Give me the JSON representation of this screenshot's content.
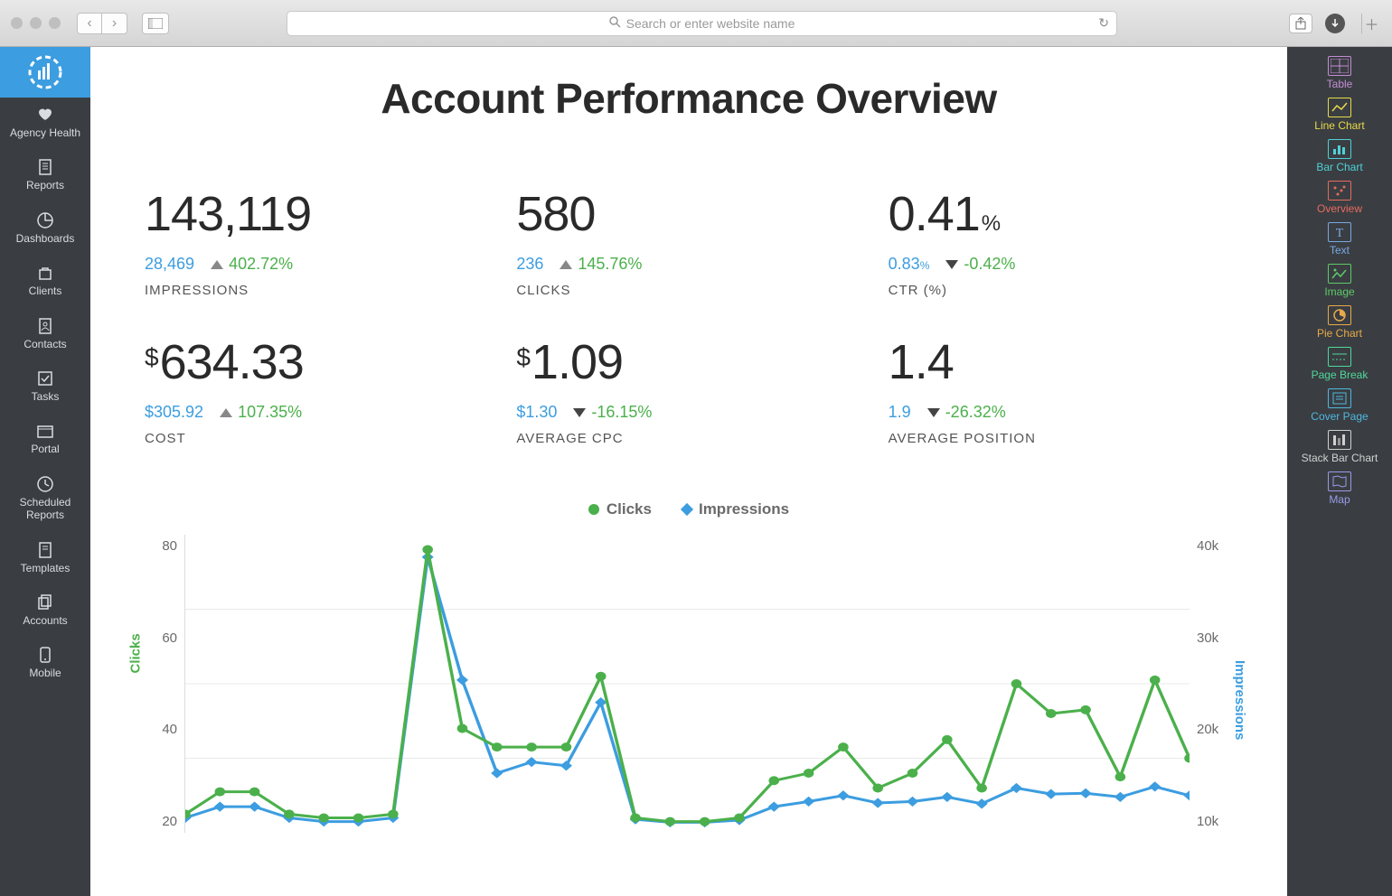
{
  "browser": {
    "placeholder": "Search or enter website name"
  },
  "left_rail": {
    "items": [
      {
        "label": "Agency Health"
      },
      {
        "label": "Reports"
      },
      {
        "label": "Dashboards"
      },
      {
        "label": "Clients"
      },
      {
        "label": "Contacts"
      },
      {
        "label": "Tasks"
      },
      {
        "label": "Portal"
      },
      {
        "label": "Scheduled Reports"
      },
      {
        "label": "Templates"
      },
      {
        "label": "Accounts"
      },
      {
        "label": "Mobile"
      }
    ]
  },
  "title": "Account Performance Overview",
  "kpis": [
    {
      "value": "143,119",
      "prefix": "",
      "unit": "",
      "prev": "28,469",
      "prev_unit": "",
      "delta": "402.72%",
      "dir": "up",
      "label": "IMPRESSIONS"
    },
    {
      "value": "580",
      "prefix": "",
      "unit": "",
      "prev": "236",
      "prev_unit": "",
      "delta": "145.76%",
      "dir": "up",
      "label": "CLICKS"
    },
    {
      "value": "0.41",
      "prefix": "",
      "unit": "%",
      "prev": "0.83",
      "prev_unit": "%",
      "delta": "-0.42%",
      "dir": "down",
      "label": "CTR (%)"
    },
    {
      "value": "634.33",
      "prefix": "$",
      "unit": "",
      "prev": "$305.92",
      "prev_unit": "",
      "delta": "107.35%",
      "dir": "up",
      "label": "COST"
    },
    {
      "value": "1.09",
      "prefix": "$",
      "unit": "",
      "prev": "$1.30",
      "prev_unit": "",
      "delta": "-16.15%",
      "dir": "down",
      "label": "AVERAGE CPC"
    },
    {
      "value": "1.4",
      "prefix": "",
      "unit": "",
      "prev": "1.9",
      "prev_unit": "",
      "delta": "-26.32%",
      "dir": "down",
      "label": "AVERAGE POSITION"
    }
  ],
  "chart": {
    "legend": {
      "s1": "Clicks",
      "s2": "Impressions"
    },
    "colors": {
      "clicks": "#4bb04b",
      "impressions": "#3c9de0",
      "grid": "#e9e9e9",
      "axis_text": "#6a6a6a"
    },
    "y_left": {
      "label": "Clicks",
      "max": 80,
      "ticks": [
        "80",
        "60",
        "40",
        "20"
      ]
    },
    "y_right": {
      "label": "Impressions",
      "max": 40000,
      "ticks": [
        "40k",
        "30k",
        "20k",
        "10k"
      ]
    },
    "clicks": [
      5,
      11,
      11,
      5,
      4,
      4,
      5,
      76,
      28,
      23,
      23,
      23,
      42,
      4,
      3,
      3,
      4,
      14,
      16,
      23,
      12,
      16,
      25,
      12,
      40,
      32,
      33,
      15,
      41,
      20
    ],
    "impressions": [
      2000,
      3500,
      3500,
      2000,
      1500,
      1500,
      2000,
      37000,
      20500,
      8000,
      9500,
      9000,
      17500,
      1800,
      1400,
      1400,
      1700,
      3500,
      4200,
      5000,
      4000,
      4200,
      4800,
      3900,
      6000,
      5200,
      5300,
      4800,
      6200,
      5000
    ]
  },
  "right_rail": {
    "items": [
      {
        "label": "Table",
        "color": "#c58bd6"
      },
      {
        "label": "Line Chart",
        "color": "#e8d94a"
      },
      {
        "label": "Bar Chart",
        "color": "#4fd0d8"
      },
      {
        "label": "Overview",
        "color": "#e86a5f"
      },
      {
        "label": "Text",
        "color": "#7aa8e0"
      },
      {
        "label": "Image",
        "color": "#5fc96a"
      },
      {
        "label": "Pie Chart",
        "color": "#e8a94a"
      },
      {
        "label": "Page Break",
        "color": "#4fd89a"
      },
      {
        "label": "Cover Page",
        "color": "#4fb8e0"
      },
      {
        "label": "Stack Bar Chart",
        "color": "#d0d0d0"
      },
      {
        "label": "Map",
        "color": "#9a9ae8"
      }
    ]
  }
}
